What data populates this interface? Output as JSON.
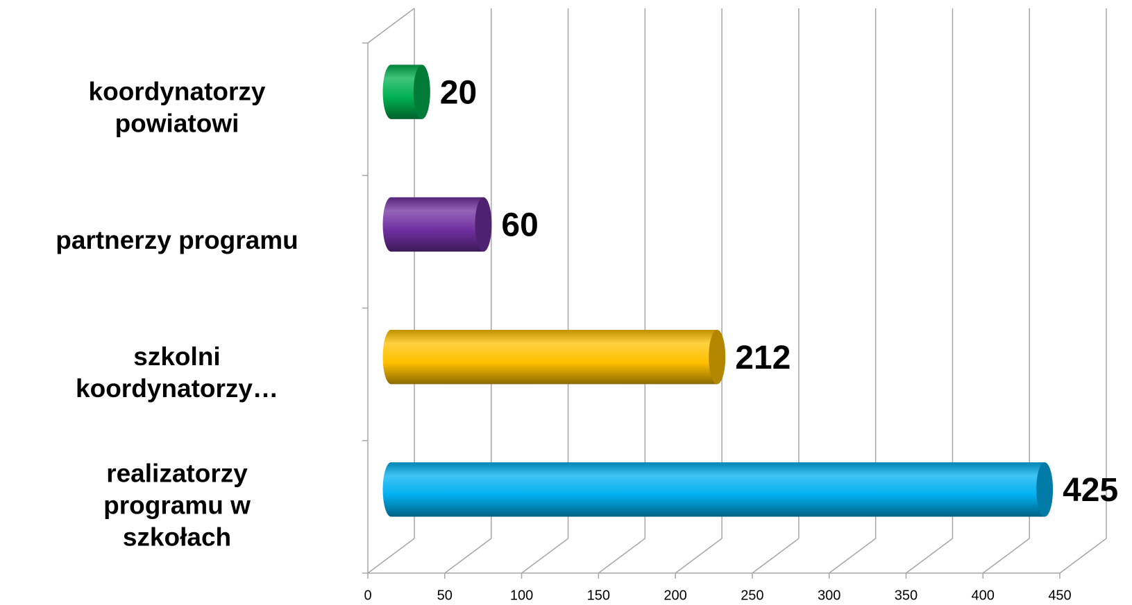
{
  "chart_data": {
    "type": "bar",
    "orientation": "horizontal",
    "categories": [
      "koordynatorzy powiatowi",
      "partnerzy programu",
      "szkolni koordynatorzy…",
      "realizatorzy programu w szkołach"
    ],
    "values": [
      20,
      60,
      212,
      425
    ],
    "colors": [
      "#00b050",
      "#7030a0",
      "#ffc000",
      "#00b0f0"
    ],
    "xlim": [
      0,
      450
    ],
    "xticks": [
      0,
      50,
      100,
      150,
      200,
      250,
      300,
      350,
      400,
      450
    ],
    "grid": true
  }
}
